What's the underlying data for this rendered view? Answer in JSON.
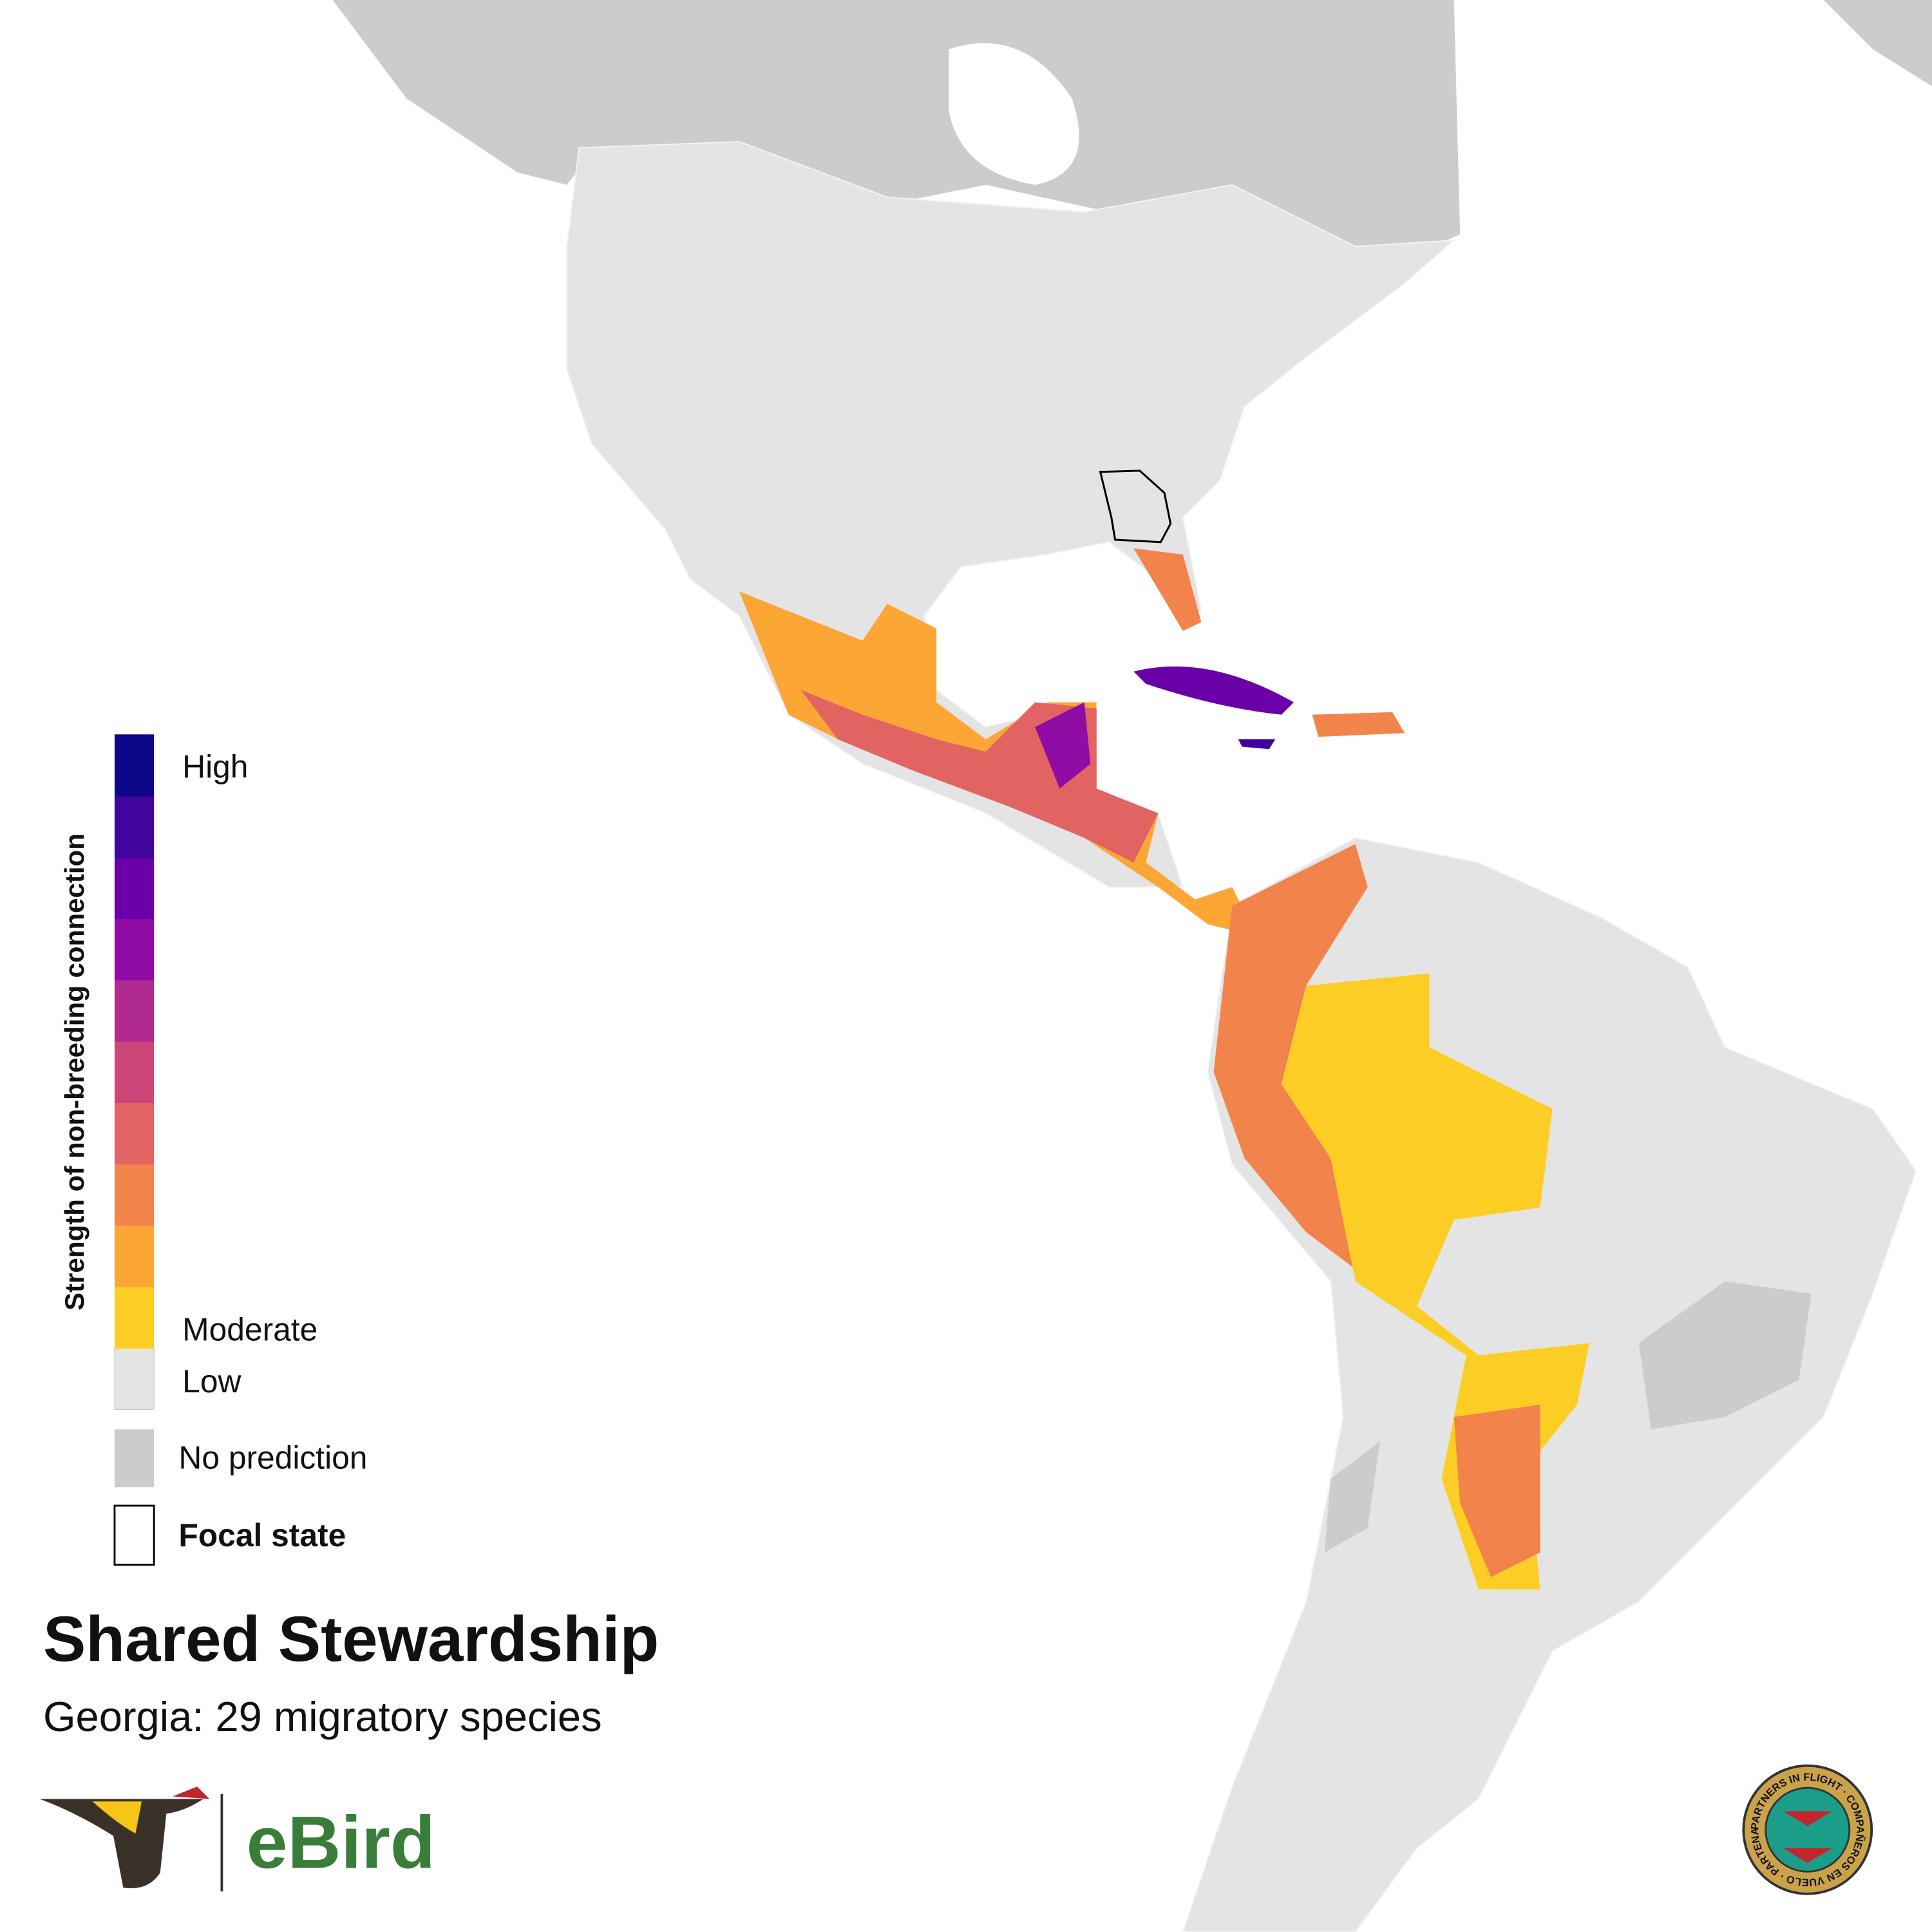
{
  "title": "Shared Stewardship",
  "subtitle": "Georgia: 29 migratory species",
  "legend": {
    "axis_title": "Strength of non-breeding connection",
    "high_label": "High",
    "moderate_label": "Moderate",
    "low_label": "Low",
    "no_prediction_label": "No prediction",
    "focal_state_label": "Focal state",
    "colors": [
      "#0d0887",
      "#41049d",
      "#6a00a8",
      "#8f0da4",
      "#b12a90",
      "#cc4778",
      "#e16462",
      "#f2844b",
      "#fca636",
      "#fcce25"
    ],
    "low_color": "#e4e4e4",
    "no_prediction_color": "#cccccc"
  },
  "logos": {
    "ebird": "eBird",
    "partners_in_flight": "PARTNERS IN FLIGHT · COMPAÑEROS EN VUELO · PARTENAIRES D'ENVOL"
  }
}
